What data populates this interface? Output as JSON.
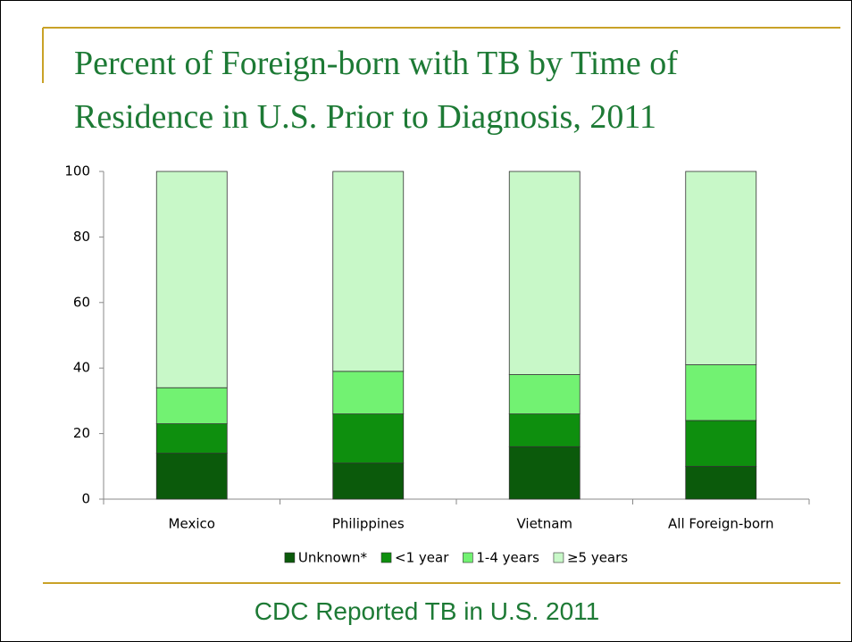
{
  "chart_data": {
    "type": "stacked_bar",
    "title": "Percent of Foreign-born with TB by Time of Residence in U.S. Prior to Diagnosis, 2011",
    "categories": [
      "Mexico",
      "Philippines",
      "Vietnam",
      "All Foreign-born"
    ],
    "series": [
      {
        "name": "Unknown*",
        "color": "#0b5a0b",
        "values": [
          14,
          11,
          16,
          10
        ]
      },
      {
        "name": "<1 year",
        "color": "#0e8f0e",
        "values": [
          9,
          15,
          10,
          14
        ]
      },
      {
        "name": "1-4 years",
        "color": "#72f272",
        "values": [
          11,
          13,
          12,
          17
        ]
      },
      {
        "name": "≥5 years",
        "color": "#c8f8c8",
        "values": [
          66,
          61,
          62,
          59
        ]
      }
    ],
    "ylim": [
      0,
      100
    ],
    "yticks": [
      0,
      20,
      40,
      60,
      80,
      100
    ],
    "grid": false,
    "legend": "bottom"
  },
  "footer": "CDC Reported TB in U.S. 2011"
}
